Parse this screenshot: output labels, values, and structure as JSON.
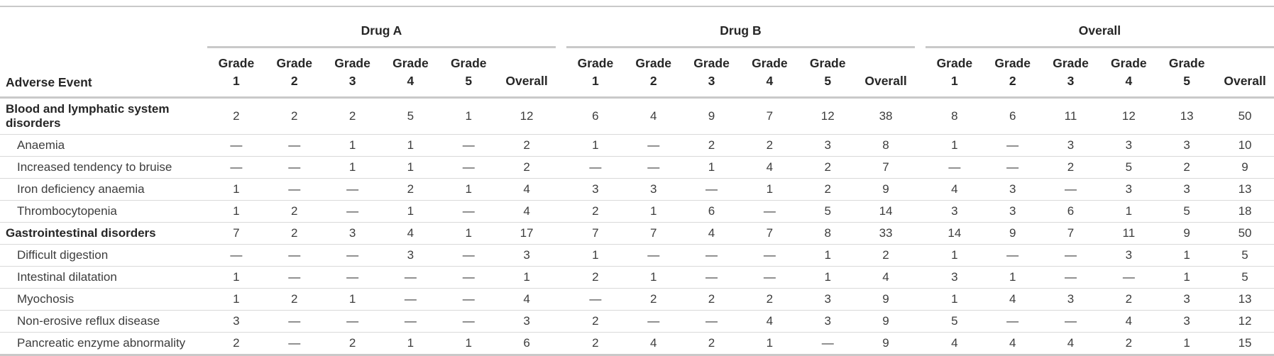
{
  "chart_data": {
    "type": "table",
    "stub_header": "Adverse Event",
    "groups": [
      {
        "label": "Drug A"
      },
      {
        "label": "Drug B"
      },
      {
        "label": "Overall"
      }
    ],
    "sub_columns": [
      {
        "top": "Grade",
        "bottom": "1"
      },
      {
        "top": "Grade",
        "bottom": "2"
      },
      {
        "top": "Grade",
        "bottom": "3"
      },
      {
        "top": "Grade",
        "bottom": "4"
      },
      {
        "top": "Grade",
        "bottom": "5"
      },
      {
        "top": "",
        "bottom": "Overall"
      }
    ],
    "empty_symbol": "—",
    "rows": [
      {
        "label": "Blood and lymphatic system disorders",
        "section": true,
        "values": [
          [
            "2",
            "2",
            "2",
            "5",
            "1",
            "12"
          ],
          [
            "6",
            "4",
            "9",
            "7",
            "12",
            "38"
          ],
          [
            "8",
            "6",
            "11",
            "12",
            "13",
            "50"
          ]
        ]
      },
      {
        "label": "Anaemia",
        "section": false,
        "values": [
          [
            "—",
            "—",
            "1",
            "1",
            "—",
            "2"
          ],
          [
            "1",
            "—",
            "2",
            "2",
            "3",
            "8"
          ],
          [
            "1",
            "—",
            "3",
            "3",
            "3",
            "10"
          ]
        ]
      },
      {
        "label": "Increased tendency to bruise",
        "section": false,
        "values": [
          [
            "—",
            "—",
            "1",
            "1",
            "—",
            "2"
          ],
          [
            "—",
            "—",
            "1",
            "4",
            "2",
            "7"
          ],
          [
            "—",
            "—",
            "2",
            "5",
            "2",
            "9"
          ]
        ]
      },
      {
        "label": "Iron deficiency anaemia",
        "section": false,
        "values": [
          [
            "1",
            "—",
            "—",
            "2",
            "1",
            "4"
          ],
          [
            "3",
            "3",
            "—",
            "1",
            "2",
            "9"
          ],
          [
            "4",
            "3",
            "—",
            "3",
            "3",
            "13"
          ]
        ]
      },
      {
        "label": "Thrombocytopenia",
        "section": false,
        "values": [
          [
            "1",
            "2",
            "—",
            "1",
            "—",
            "4"
          ],
          [
            "2",
            "1",
            "6",
            "—",
            "5",
            "14"
          ],
          [
            "3",
            "3",
            "6",
            "1",
            "5",
            "18"
          ]
        ]
      },
      {
        "label": "Gastrointestinal disorders",
        "section": true,
        "values": [
          [
            "7",
            "2",
            "3",
            "4",
            "1",
            "17"
          ],
          [
            "7",
            "7",
            "4",
            "7",
            "8",
            "33"
          ],
          [
            "14",
            "9",
            "7",
            "11",
            "9",
            "50"
          ]
        ]
      },
      {
        "label": "Difficult digestion",
        "section": false,
        "values": [
          [
            "—",
            "—",
            "—",
            "3",
            "—",
            "3"
          ],
          [
            "1",
            "—",
            "—",
            "—",
            "1",
            "2"
          ],
          [
            "1",
            "—",
            "—",
            "3",
            "1",
            "5"
          ]
        ]
      },
      {
        "label": "Intestinal dilatation",
        "section": false,
        "values": [
          [
            "1",
            "—",
            "—",
            "—",
            "—",
            "1"
          ],
          [
            "2",
            "1",
            "—",
            "—",
            "1",
            "4"
          ],
          [
            "3",
            "1",
            "—",
            "—",
            "1",
            "5"
          ]
        ]
      },
      {
        "label": "Myochosis",
        "section": false,
        "values": [
          [
            "1",
            "2",
            "1",
            "—",
            "—",
            "4"
          ],
          [
            "—",
            "2",
            "2",
            "2",
            "3",
            "9"
          ],
          [
            "1",
            "4",
            "3",
            "2",
            "3",
            "13"
          ]
        ]
      },
      {
        "label": "Non-erosive reflux disease",
        "section": false,
        "values": [
          [
            "3",
            "—",
            "—",
            "—",
            "—",
            "3"
          ],
          [
            "2",
            "—",
            "—",
            "4",
            "3",
            "9"
          ],
          [
            "5",
            "—",
            "—",
            "4",
            "3",
            "12"
          ]
        ]
      },
      {
        "label": "Pancreatic enzyme abnormality",
        "section": false,
        "values": [
          [
            "2",
            "—",
            "2",
            "1",
            "1",
            "6"
          ],
          [
            "2",
            "4",
            "2",
            "1",
            "—",
            "9"
          ],
          [
            "4",
            "4",
            "4",
            "2",
            "1",
            "15"
          ]
        ]
      }
    ],
    "layout": {
      "grid": "horizontal-rules-only",
      "colors": {
        "rule_heavy": "#c9c9c9",
        "rule_light": "#d9d9d9",
        "text": "#3d3d3d",
        "text_bold": "#262626",
        "background": "#ffffff"
      }
    }
  }
}
